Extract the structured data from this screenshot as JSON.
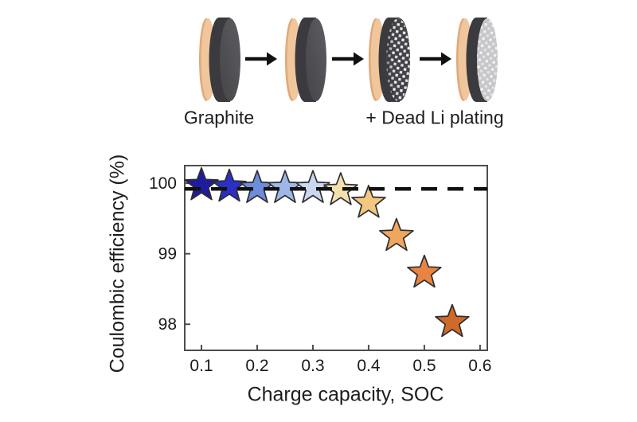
{
  "figure": {
    "top_labels": {
      "graphite": "Graphite",
      "dead_li_plating": "+ Dead Li plating"
    },
    "stage_names": [
      "graphite-pristine",
      "graphite-cycled",
      "graphite-partial-dead-li",
      "graphite-full-dead-li"
    ],
    "colors": {
      "copper_foil": "#f0c69c",
      "copper_foil_shadow": "#e2a878",
      "graphite_body": "#3b3b3f",
      "graphite_face": "#4f4f54",
      "plated_face": "#c7c7c9",
      "dead_li_speckle": "#f2f2f2",
      "arrow": "#111111"
    }
  },
  "chart_data": {
    "type": "scatter",
    "marker": "star",
    "title": "",
    "xlabel": "Charge capacity, SOC",
    "ylabel": "Coulombic efficiency (%)",
    "x": [
      0.1,
      0.15,
      0.2,
      0.25,
      0.3,
      0.35,
      0.4,
      0.45,
      0.5,
      0.55
    ],
    "y": [
      99.97,
      99.95,
      99.93,
      99.93,
      99.93,
      99.9,
      99.72,
      99.25,
      98.73,
      98.03
    ],
    "point_colors": [
      "#1e1b9e",
      "#2b2fc4",
      "#6d8cdc",
      "#9db8e6",
      "#c9d8ef",
      "#f3e0ad",
      "#f3c780",
      "#f0a65c",
      "#e98440",
      "#d06a28"
    ],
    "marker_outline": "#2e2e33",
    "xticks": [
      0.1,
      0.2,
      0.3,
      0.4,
      0.5,
      0.6
    ],
    "yticks": [
      100,
      99,
      98
    ],
    "xlim": [
      0.07,
      0.613
    ],
    "ylim": [
      97.63,
      100.25
    ],
    "reference_line": {
      "y": 99.92,
      "style": "dashed",
      "color": "#111111"
    },
    "grid": false,
    "legend": null
  }
}
